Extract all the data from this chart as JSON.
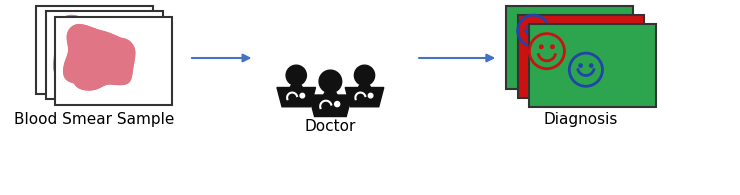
{
  "bg_color": "#ffffff",
  "arrow_color": "#4472c4",
  "label_blood": "Blood Smear Sample",
  "label_doctor": "Doctor",
  "label_diagnosis": "Diagnosis",
  "label_fontsize": 11,
  "blob_color": "#e07585",
  "blob_edge": "#e07585",
  "face_happy_color": "#2244aa",
  "face_sad_color": "#cc1111",
  "doctor_color": "#111111",
  "card_edge": "#333333",
  "green_color": "#2da44e",
  "red_color": "#cc1111",
  "diag_back_color": "#2da44e",
  "diag_mid_color": "#cc1111",
  "diag_front_color": "#2da44e"
}
